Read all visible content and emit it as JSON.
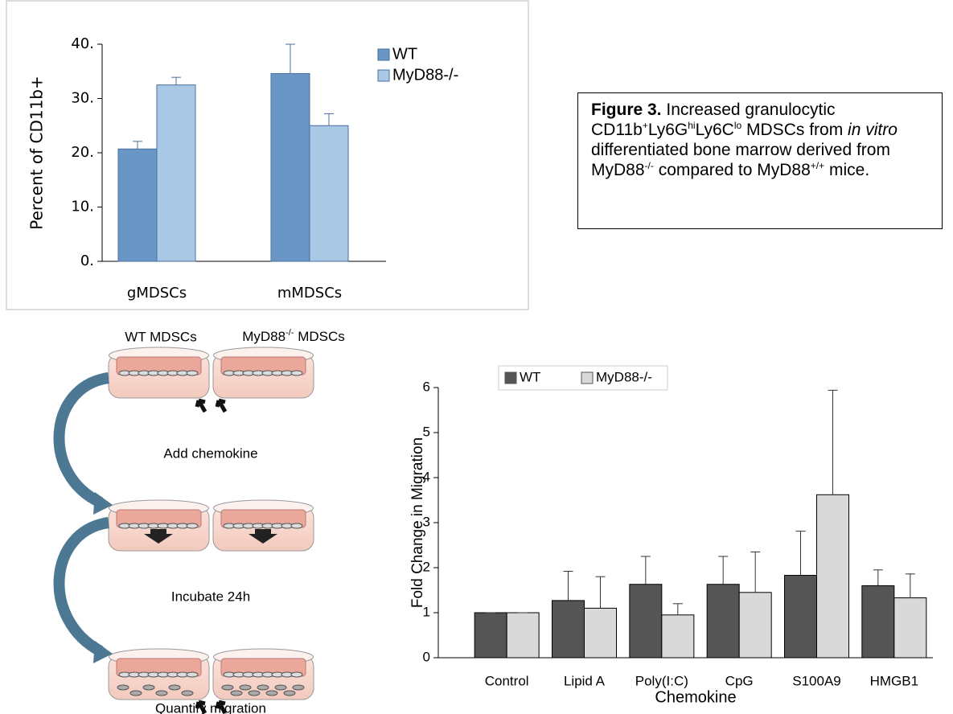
{
  "chart_data": [
    {
      "type": "bar",
      "categories": [
        "gMDSCs",
        "mMDSCs"
      ],
      "series": [
        {
          "name": "WT",
          "color": "#6a95c7",
          "values": [
            20.7,
            34.6
          ],
          "errors": [
            1.4,
            5.4
          ]
        },
        {
          "name": "MyD88-/-",
          "color": "#a9c8e6",
          "values": [
            32.5,
            25.0
          ],
          "errors": [
            1.4,
            2.2
          ]
        }
      ],
      "ylabel": "Percent of CD11b+",
      "ylim": [
        0,
        40
      ],
      "yticks": [
        {
          "value": 0,
          "label": "0."
        },
        {
          "value": 10,
          "label": "10."
        },
        {
          "value": 20,
          "label": "20."
        },
        {
          "value": 30,
          "label": "30."
        },
        {
          "value": 40,
          "label": "40."
        }
      ],
      "legend": "right"
    },
    {
      "type": "bar",
      "categories": [
        "Control",
        "Lipid A",
        "Poly(I:C)",
        "CpG",
        "S100A9",
        "HMGB1"
      ],
      "series": [
        {
          "name": "WT",
          "color": "#555555",
          "values": [
            1.0,
            1.27,
            1.63,
            1.63,
            1.83,
            1.6
          ],
          "errors": [
            0,
            0.65,
            0.62,
            0.62,
            0.98,
            0.35
          ]
        },
        {
          "name": "MyD88-/-",
          "color": "#d9d9d9",
          "values": [
            1.0,
            1.1,
            0.95,
            1.45,
            3.62,
            1.33
          ],
          "errors": [
            0,
            0.7,
            0.25,
            0.9,
            2.32,
            0.53
          ]
        }
      ],
      "xlabel": "Chemokine",
      "ylabel": "Fold  Change in Migration",
      "ylim": [
        0,
        6
      ],
      "yticks": [
        0,
        1,
        2,
        3,
        4,
        5,
        6
      ],
      "legend": "upper left"
    }
  ],
  "caption": [
    "Figure 3.",
    " Increased granulocytic CD11b",
    "+",
    "Ly6G",
    "hi",
    "Ly6C",
    "lo",
    " MDSCs from ",
    "in vitro",
    " differentiated bone marrow derived from MyD88",
    "-/-",
    " compared to MyD88",
    "+/+",
    " mice."
  ],
  "diagram": {
    "wt_label": "WT MDSCs",
    "ko_label": [
      "MyD88",
      "-/-",
      " MDSCs"
    ],
    "steps": [
      "Add chemokine",
      "Incubate 24h",
      "Quantify migration"
    ]
  }
}
